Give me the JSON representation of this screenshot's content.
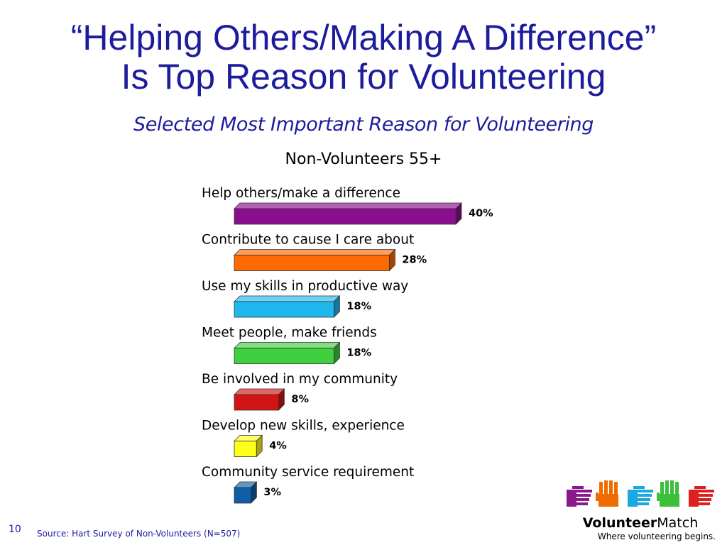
{
  "slide": {
    "title_line1": "“Helping Others/Making A Difference”",
    "title_line2": "Is Top Reason for Volunteering",
    "page_number": "10",
    "source": "Source: Hart Survey of Non-Volunteers (N=507)"
  },
  "logo": {
    "name_bold": "Volunteer",
    "name_regular": "Match",
    "tagline": "Where volunteering begins.",
    "hand_colors": [
      "#8a1a8c",
      "#f06c00",
      "#1aa8e0",
      "#3cc03c",
      "#e02020"
    ]
  },
  "chart_data": {
    "type": "bar",
    "orientation": "horizontal",
    "title": "Selected Most Important Reason for Volunteering",
    "subtitle": "Non-Volunteers 55+",
    "categories": [
      "Help others/make a difference",
      "Contribute to cause I care about",
      "Use my skills in productive way",
      "Meet people, make friends",
      "Be involved in my community",
      "Develop new skills, experience",
      "Community service requirement"
    ],
    "values": [
      40,
      28,
      18,
      18,
      8,
      4,
      3
    ],
    "value_labels": [
      "40%",
      "28%",
      "18%",
      "18%",
      "8%",
      "4%",
      "3%"
    ],
    "colors": [
      "#8a0f8e",
      "#ff6a00",
      "#1fb8ee",
      "#3fcf3f",
      "#d41414",
      "#ffff1a",
      "#0e5fa6"
    ],
    "unit": "%",
    "grid": false,
    "legend": "none"
  }
}
